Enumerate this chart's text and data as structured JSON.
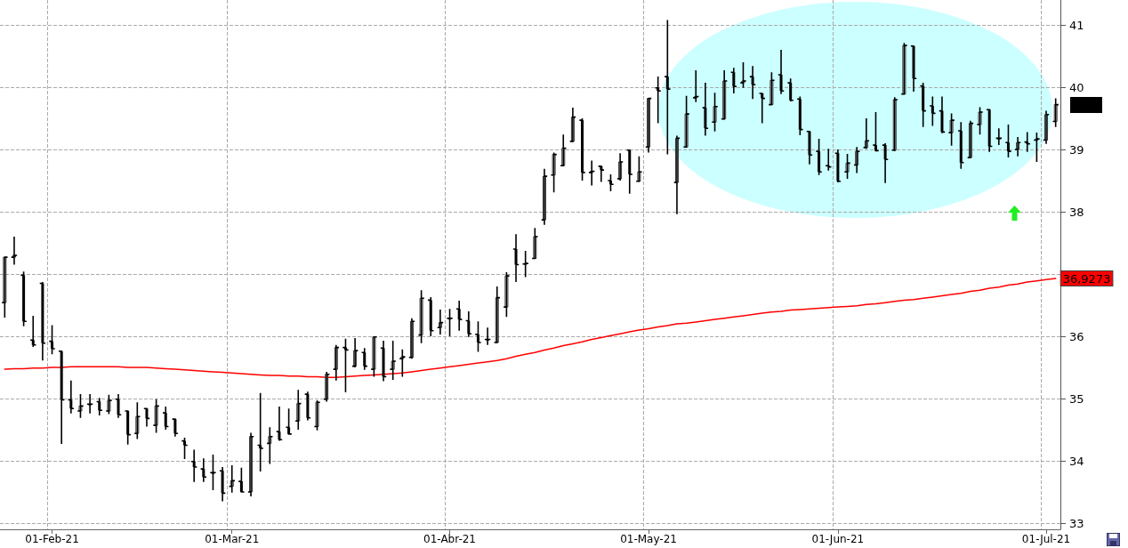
{
  "chart_data": {
    "type": "candlestick",
    "categories": [
      null,
      null,
      null,
      null,
      null,
      "01-Feb-21",
      null,
      null,
      null,
      null,
      null,
      null,
      null,
      null,
      null,
      null,
      null,
      null,
      null,
      null,
      null,
      null,
      null,
      null,
      "01-Mar-21",
      null,
      null,
      null,
      null,
      null,
      null,
      null,
      null,
      null,
      null,
      null,
      null,
      null,
      null,
      null,
      null,
      null,
      null,
      null,
      null,
      null,
      null,
      "01-Abr-21",
      null,
      null,
      null,
      null,
      null,
      null,
      null,
      null,
      null,
      null,
      null,
      null,
      null,
      null,
      null,
      null,
      null,
      null,
      null,
      null,
      "01-May-21",
      null,
      null,
      null,
      null,
      null,
      null,
      null,
      null,
      null,
      null,
      null,
      null,
      null,
      null,
      null,
      null,
      null,
      null,
      null,
      "01-Jun-21",
      null,
      null,
      null,
      null,
      null,
      null,
      null,
      null,
      null,
      null,
      null,
      null,
      null,
      null,
      null,
      null,
      null,
      null,
      null,
      null,
      null,
      "01-Jul-21",
      null
    ],
    "series": [
      {
        "color": "#000000",
        "ohlc": [
          [
            36.54,
            37.28,
            36.3,
            37.27
          ],
          [
            37.27,
            37.6,
            37.15,
            37.3
          ],
          [
            36.98,
            37.04,
            36.16,
            36.24
          ],
          [
            35.94,
            36.33,
            35.83,
            35.86
          ],
          [
            36.85,
            36.87,
            35.61,
            35.89
          ],
          [
            35.92,
            36.18,
            35.71,
            35.8
          ],
          [
            35.76,
            35.76,
            34.27,
            34.98
          ],
          [
            34.98,
            35.29,
            34.76,
            34.84
          ],
          [
            34.8,
            35.07,
            34.69,
            34.88
          ],
          [
            34.91,
            35.07,
            34.76,
            34.91
          ],
          [
            34.95,
            35.01,
            34.73,
            34.81
          ],
          [
            34.8,
            35.06,
            34.75,
            34.97
          ],
          [
            34.99,
            35.07,
            34.69,
            34.74
          ],
          [
            34.8,
            34.8,
            34.26,
            34.42
          ],
          [
            34.44,
            34.94,
            34.35,
            34.71
          ],
          [
            34.84,
            34.85,
            34.55,
            34.68
          ],
          [
            34.57,
            34.99,
            34.45,
            34.88
          ],
          [
            34.77,
            34.87,
            34.5,
            34.55
          ],
          [
            34.67,
            34.67,
            34.39,
            34.44
          ],
          [
            34.32,
            34.37,
            34.03,
            34.25
          ],
          [
            33.99,
            34.18,
            33.66,
            33.9
          ],
          [
            33.87,
            34.04,
            33.66,
            33.74
          ],
          [
            33.81,
            34.1,
            33.53,
            33.81
          ],
          [
            33.84,
            33.9,
            33.35,
            33.48
          ],
          [
            33.59,
            33.93,
            33.49,
            33.68
          ],
          [
            33.67,
            33.89,
            33.49,
            33.5
          ],
          [
            33.5,
            34.45,
            33.43,
            34.39
          ],
          [
            34.25,
            35.09,
            33.83,
            34.2
          ],
          [
            34.28,
            34.54,
            33.95,
            34.39
          ],
          [
            34.47,
            34.87,
            34.32,
            34.34
          ],
          [
            34.54,
            34.84,
            34.43,
            34.43
          ],
          [
            34.64,
            35.14,
            34.5,
            34.92
          ],
          [
            35.07,
            35.11,
            34.65,
            34.69
          ],
          [
            34.55,
            34.97,
            34.49,
            34.94
          ],
          [
            34.99,
            35.43,
            34.95,
            35.39
          ],
          [
            35.47,
            35.86,
            35.29,
            35.82
          ],
          [
            35.82,
            35.96,
            35.1,
            35.78
          ],
          [
            35.52,
            35.97,
            35.5,
            35.77
          ],
          [
            35.74,
            35.81,
            35.46,
            35.52
          ],
          [
            35.47,
            36.0,
            35.35,
            35.99
          ],
          [
            35.81,
            35.93,
            35.28,
            35.35
          ],
          [
            35.47,
            35.93,
            35.3,
            35.6
          ],
          [
            35.64,
            35.79,
            35.35,
            35.67
          ],
          [
            35.66,
            36.29,
            35.64,
            36.24
          ],
          [
            36.02,
            36.74,
            35.89,
            36.61
          ],
          [
            36.58,
            36.63,
            36.0,
            36.09
          ],
          [
            36.14,
            36.43,
            36.03,
            36.22
          ],
          [
            36.29,
            36.44,
            36.0,
            36.29
          ],
          [
            36.44,
            36.57,
            36.09,
            36.27
          ],
          [
            36.25,
            36.4,
            35.99,
            36.04
          ],
          [
            36.03,
            36.24,
            35.75,
            35.9
          ],
          [
            35.95,
            36.14,
            35.86,
            35.95
          ],
          [
            35.9,
            36.8,
            35.9,
            36.62
          ],
          [
            36.47,
            37.03,
            36.31,
            36.97
          ],
          [
            37.4,
            37.64,
            36.87,
            37.15
          ],
          [
            37.16,
            37.37,
            36.95,
            37.17
          ],
          [
            37.25,
            37.74,
            37.25,
            37.6
          ],
          [
            37.87,
            38.69,
            37.79,
            38.57
          ],
          [
            38.59,
            38.95,
            38.31,
            38.92
          ],
          [
            38.74,
            39.24,
            38.74,
            39.02
          ],
          [
            39.13,
            39.67,
            39.13,
            39.52
          ],
          [
            39.47,
            39.5,
            38.5,
            38.63
          ],
          [
            38.63,
            38.82,
            38.42,
            38.65
          ],
          [
            38.73,
            38.74,
            38.48,
            38.67
          ],
          [
            38.5,
            38.6,
            38.33,
            38.44
          ],
          [
            38.53,
            38.94,
            38.5,
            38.8
          ],
          [
            38.99,
            38.99,
            38.29,
            38.6
          ],
          [
            38.49,
            38.89,
            38.48,
            38.64
          ],
          [
            39.04,
            39.83,
            38.95,
            39.82
          ],
          [
            39.99,
            40.17,
            39.42,
            39.94
          ],
          [
            40.17,
            41.08,
            38.92,
            39.97
          ],
          [
            38.47,
            39.22,
            37.96,
            39.18
          ],
          [
            39.04,
            39.86,
            39.04,
            39.57
          ],
          [
            39.83,
            40.27,
            39.76,
            39.85
          ],
          [
            39.67,
            40.07,
            39.22,
            39.34
          ],
          [
            39.44,
            39.91,
            39.29,
            39.69
          ],
          [
            39.49,
            40.27,
            39.49,
            40.1
          ],
          [
            40.24,
            40.31,
            39.9,
            40.01
          ],
          [
            40.07,
            40.4,
            39.99,
            40.1
          ],
          [
            40.17,
            40.34,
            39.81,
            40.04
          ],
          [
            39.9,
            39.9,
            39.42,
            39.82
          ],
          [
            39.72,
            40.24,
            39.71,
            40.11
          ],
          [
            40.2,
            40.6,
            39.89,
            39.94
          ],
          [
            40.07,
            40.14,
            39.77,
            39.79
          ],
          [
            39.81,
            39.85,
            39.23,
            39.32
          ],
          [
            39.29,
            39.29,
            38.76,
            38.91
          ],
          [
            38.97,
            39.17,
            38.59,
            38.64
          ],
          [
            38.74,
            39.01,
            38.66,
            38.72
          ],
          [
            38.94,
            39.0,
            38.47,
            38.49
          ],
          [
            38.64,
            38.93,
            38.53,
            38.78
          ],
          [
            38.75,
            39.04,
            38.62,
            38.97
          ],
          [
            39.03,
            39.5,
            39.01,
            39.14
          ],
          [
            39.07,
            39.6,
            38.97,
            38.98
          ],
          [
            39.07,
            39.1,
            38.46,
            38.84
          ],
          [
            38.99,
            39.84,
            38.97,
            39.8
          ],
          [
            39.89,
            40.71,
            39.88,
            40.67
          ],
          [
            40.66,
            40.67,
            39.93,
            40.14
          ],
          [
            40.02,
            40.07,
            39.36,
            39.62
          ],
          [
            39.7,
            39.85,
            39.38,
            39.58
          ],
          [
            39.62,
            39.85,
            39.26,
            39.28
          ],
          [
            39.27,
            39.58,
            39.06,
            39.47
          ],
          [
            39.3,
            39.44,
            38.69,
            38.79
          ],
          [
            38.87,
            39.46,
            38.86,
            39.42
          ],
          [
            39.4,
            39.68,
            39.24,
            39.6
          ],
          [
            39.64,
            39.65,
            38.96,
            39.05
          ],
          [
            39.18,
            39.34,
            39.07,
            39.18
          ],
          [
            39.11,
            39.4,
            38.87,
            38.97
          ],
          [
            39.0,
            39.2,
            38.89,
            39.11
          ],
          [
            39.12,
            39.28,
            38.96,
            39.09
          ],
          [
            39.15,
            39.27,
            38.8,
            39.17
          ],
          [
            39.15,
            39.62,
            39.09,
            39.56
          ],
          [
            39.45,
            39.82,
            39.36,
            39.72
          ]
        ]
      },
      {
        "type": "line",
        "color": "#ff0000",
        "values": [
          35.47,
          35.48,
          35.48,
          35.49,
          35.49,
          35.5,
          35.5,
          35.51,
          35.51,
          35.51,
          35.51,
          35.51,
          35.51,
          35.5,
          35.5,
          35.5,
          35.49,
          35.48,
          35.47,
          35.46,
          35.45,
          35.44,
          35.43,
          35.42,
          35.41,
          35.4,
          35.39,
          35.38,
          35.37,
          35.37,
          35.36,
          35.36,
          35.35,
          35.35,
          35.34,
          35.34,
          35.35,
          35.36,
          35.37,
          35.38,
          35.39,
          35.4,
          35.41,
          35.43,
          35.45,
          35.47,
          35.49,
          35.51,
          35.53,
          35.55,
          35.57,
          35.59,
          35.61,
          35.64,
          35.68,
          35.71,
          35.74,
          35.78,
          35.81,
          35.85,
          35.88,
          35.91,
          35.95,
          35.98,
          36.01,
          36.04,
          36.07,
          36.1,
          36.12,
          36.15,
          36.17,
          36.2,
          36.21,
          36.23,
          36.25,
          36.27,
          36.29,
          36.31,
          36.33,
          36.35,
          36.37,
          36.39,
          36.4,
          36.42,
          36.43,
          36.44,
          36.45,
          36.46,
          36.47,
          36.48,
          36.49,
          36.51,
          36.52,
          36.54,
          36.56,
          36.58,
          36.59,
          36.61,
          36.63,
          36.65,
          36.67,
          36.69,
          36.72,
          36.74,
          36.77,
          36.79,
          36.82,
          36.84,
          36.87,
          36.89,
          36.91,
          36.9273
        ],
        "value_labels": [
          null,
          null,
          null,
          null,
          null,
          null,
          null,
          null,
          null,
          null,
          null,
          null,
          null,
          null,
          null,
          null,
          null,
          null,
          null,
          null,
          null,
          null,
          null,
          null,
          null,
          null,
          null,
          null,
          null,
          null,
          null,
          null,
          null,
          null,
          null,
          null,
          null,
          null,
          null,
          null,
          null,
          null,
          null,
          null,
          null,
          null,
          null,
          null,
          null,
          null,
          null,
          null,
          null,
          null,
          null,
          null,
          null,
          null,
          null,
          null,
          null,
          null,
          null,
          null,
          null,
          null,
          null,
          null,
          null,
          null,
          null,
          null,
          null,
          null,
          null,
          null,
          null,
          null,
          null,
          null,
          null,
          null,
          null,
          null,
          null,
          null,
          null,
          null,
          null,
          null,
          null,
          null,
          null,
          null,
          null,
          null,
          null,
          null,
          null,
          null,
          null,
          null,
          null,
          null,
          null,
          null,
          null,
          null,
          null,
          null,
          null,
          "36,9273"
        ]
      }
    ],
    "ylim": [
      32.9,
      41.4
    ],
    "yticks": [
      33,
      34,
      35,
      36,
      {
        "value": 37,
        "label": null
      },
      38,
      39,
      40,
      41
    ],
    "grid": true
  }
}
